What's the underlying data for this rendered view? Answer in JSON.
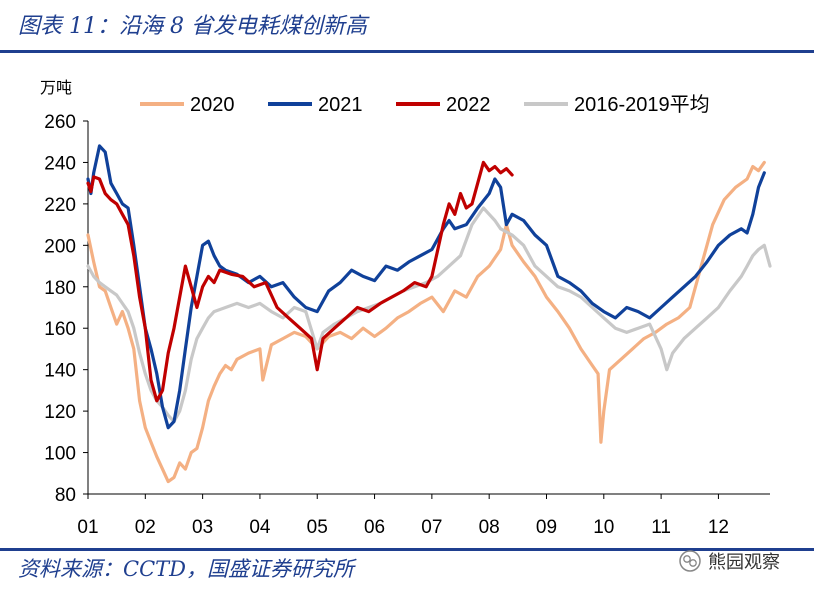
{
  "figure": {
    "title": "图表 11：沿海 8 省发电耗煤创新高",
    "source": "资料来源：CCTD，国盛证券研究所",
    "watermark": "熊园观察"
  },
  "colors": {
    "rule": "#1f3f8f"
  },
  "chart_data": {
    "type": "line",
    "title": "",
    "ylabel": "万吨",
    "xlabel": "",
    "ylim": [
      80,
      260
    ],
    "xlim": [
      1,
      12.9
    ],
    "yticks": [
      80,
      100,
      120,
      140,
      160,
      180,
      200,
      220,
      240,
      260
    ],
    "xticks": [
      "01",
      "02",
      "03",
      "04",
      "05",
      "06",
      "07",
      "08",
      "09",
      "10",
      "11",
      "12"
    ],
    "legend_position": "top",
    "series": [
      {
        "name": "2020",
        "color": "#f4b083",
        "points": [
          [
            1.0,
            205
          ],
          [
            1.1,
            192
          ],
          [
            1.2,
            180
          ],
          [
            1.3,
            178
          ],
          [
            1.4,
            170
          ],
          [
            1.5,
            162
          ],
          [
            1.6,
            168
          ],
          [
            1.7,
            160
          ],
          [
            1.8,
            150
          ],
          [
            1.9,
            125
          ],
          [
            2.0,
            112
          ],
          [
            2.1,
            105
          ],
          [
            2.2,
            98
          ],
          [
            2.3,
            92
          ],
          [
            2.4,
            86
          ],
          [
            2.5,
            88
          ],
          [
            2.6,
            95
          ],
          [
            2.7,
            92
          ],
          [
            2.8,
            100
          ],
          [
            2.9,
            102
          ],
          [
            3.0,
            112
          ],
          [
            3.1,
            125
          ],
          [
            3.2,
            132
          ],
          [
            3.3,
            138
          ],
          [
            3.4,
            142
          ],
          [
            3.5,
            140
          ],
          [
            3.6,
            145
          ],
          [
            3.8,
            148
          ],
          [
            4.0,
            150
          ],
          [
            4.05,
            135
          ],
          [
            4.2,
            152
          ],
          [
            4.4,
            155
          ],
          [
            4.6,
            158
          ],
          [
            4.8,
            156
          ],
          [
            5.0,
            150
          ],
          [
            5.2,
            156
          ],
          [
            5.4,
            158
          ],
          [
            5.6,
            155
          ],
          [
            5.8,
            160
          ],
          [
            6.0,
            156
          ],
          [
            6.2,
            160
          ],
          [
            6.4,
            165
          ],
          [
            6.6,
            168
          ],
          [
            6.8,
            172
          ],
          [
            7.0,
            175
          ],
          [
            7.2,
            168
          ],
          [
            7.4,
            178
          ],
          [
            7.6,
            175
          ],
          [
            7.8,
            185
          ],
          [
            8.0,
            190
          ],
          [
            8.2,
            198
          ],
          [
            8.3,
            210
          ],
          [
            8.4,
            200
          ],
          [
            8.6,
            192
          ],
          [
            8.8,
            185
          ],
          [
            9.0,
            175
          ],
          [
            9.2,
            168
          ],
          [
            9.4,
            160
          ],
          [
            9.6,
            150
          ],
          [
            9.8,
            142
          ],
          [
            9.9,
            138
          ],
          [
            9.95,
            105
          ],
          [
            10.0,
            120
          ],
          [
            10.1,
            140
          ],
          [
            10.3,
            145
          ],
          [
            10.5,
            150
          ],
          [
            10.7,
            155
          ],
          [
            10.9,
            158
          ],
          [
            11.1,
            162
          ],
          [
            11.3,
            165
          ],
          [
            11.5,
            170
          ],
          [
            11.7,
            190
          ],
          [
            11.9,
            210
          ],
          [
            12.1,
            222
          ],
          [
            12.3,
            228
          ],
          [
            12.5,
            232
          ],
          [
            12.6,
            238
          ],
          [
            12.7,
            236
          ],
          [
            12.8,
            240
          ]
        ]
      },
      {
        "name": "2021",
        "color": "#10419a",
        "points": [
          [
            1.0,
            232
          ],
          [
            1.05,
            225
          ],
          [
            1.1,
            235
          ],
          [
            1.2,
            248
          ],
          [
            1.3,
            245
          ],
          [
            1.4,
            230
          ],
          [
            1.5,
            225
          ],
          [
            1.6,
            220
          ],
          [
            1.7,
            218
          ],
          [
            1.8,
            200
          ],
          [
            1.9,
            180
          ],
          [
            2.0,
            160
          ],
          [
            2.1,
            150
          ],
          [
            2.2,
            138
          ],
          [
            2.3,
            122
          ],
          [
            2.4,
            112
          ],
          [
            2.5,
            115
          ],
          [
            2.6,
            130
          ],
          [
            2.7,
            150
          ],
          [
            2.8,
            170
          ],
          [
            2.9,
            185
          ],
          [
            3.0,
            200
          ],
          [
            3.1,
            202
          ],
          [
            3.2,
            195
          ],
          [
            3.3,
            190
          ],
          [
            3.4,
            188
          ],
          [
            3.6,
            186
          ],
          [
            3.8,
            182
          ],
          [
            4.0,
            185
          ],
          [
            4.2,
            180
          ],
          [
            4.4,
            182
          ],
          [
            4.6,
            175
          ],
          [
            4.8,
            170
          ],
          [
            5.0,
            168
          ],
          [
            5.2,
            178
          ],
          [
            5.4,
            182
          ],
          [
            5.6,
            188
          ],
          [
            5.8,
            185
          ],
          [
            6.0,
            183
          ],
          [
            6.2,
            190
          ],
          [
            6.4,
            188
          ],
          [
            6.6,
            192
          ],
          [
            6.8,
            195
          ],
          [
            7.0,
            198
          ],
          [
            7.2,
            208
          ],
          [
            7.3,
            212
          ],
          [
            7.4,
            208
          ],
          [
            7.6,
            210
          ],
          [
            7.8,
            218
          ],
          [
            8.0,
            225
          ],
          [
            8.1,
            232
          ],
          [
            8.2,
            228
          ],
          [
            8.3,
            210
          ],
          [
            8.4,
            215
          ],
          [
            8.6,
            212
          ],
          [
            8.8,
            205
          ],
          [
            9.0,
            200
          ],
          [
            9.2,
            185
          ],
          [
            9.4,
            182
          ],
          [
            9.6,
            178
          ],
          [
            9.8,
            172
          ],
          [
            10.0,
            168
          ],
          [
            10.2,
            165
          ],
          [
            10.4,
            170
          ],
          [
            10.6,
            168
          ],
          [
            10.8,
            165
          ],
          [
            11.0,
            170
          ],
          [
            11.2,
            175
          ],
          [
            11.4,
            180
          ],
          [
            11.6,
            185
          ],
          [
            11.8,
            192
          ],
          [
            12.0,
            200
          ],
          [
            12.2,
            205
          ],
          [
            12.4,
            208
          ],
          [
            12.5,
            206
          ],
          [
            12.6,
            215
          ],
          [
            12.7,
            228
          ],
          [
            12.8,
            235
          ]
        ]
      },
      {
        "name": "2022",
        "color": "#c00000",
        "points": [
          [
            1.0,
            230
          ],
          [
            1.05,
            226
          ],
          [
            1.1,
            233
          ],
          [
            1.2,
            232
          ],
          [
            1.3,
            225
          ],
          [
            1.4,
            222
          ],
          [
            1.5,
            220
          ],
          [
            1.6,
            215
          ],
          [
            1.7,
            210
          ],
          [
            1.8,
            195
          ],
          [
            1.9,
            175
          ],
          [
            2.0,
            160
          ],
          [
            2.1,
            135
          ],
          [
            2.2,
            125
          ],
          [
            2.3,
            130
          ],
          [
            2.4,
            148
          ],
          [
            2.5,
            160
          ],
          [
            2.6,
            175
          ],
          [
            2.7,
            190
          ],
          [
            2.8,
            180
          ],
          [
            2.9,
            170
          ],
          [
            3.0,
            180
          ],
          [
            3.1,
            185
          ],
          [
            3.2,
            182
          ],
          [
            3.3,
            188
          ],
          [
            3.5,
            186
          ],
          [
            3.7,
            185
          ],
          [
            3.9,
            180
          ],
          [
            4.1,
            182
          ],
          [
            4.3,
            170
          ],
          [
            4.5,
            165
          ],
          [
            4.7,
            160
          ],
          [
            4.9,
            155
          ],
          [
            5.0,
            140
          ],
          [
            5.1,
            155
          ],
          [
            5.3,
            160
          ],
          [
            5.5,
            165
          ],
          [
            5.7,
            170
          ],
          [
            5.9,
            168
          ],
          [
            6.1,
            172
          ],
          [
            6.3,
            175
          ],
          [
            6.5,
            178
          ],
          [
            6.7,
            182
          ],
          [
            6.9,
            180
          ],
          [
            7.0,
            185
          ],
          [
            7.2,
            210
          ],
          [
            7.3,
            220
          ],
          [
            7.4,
            215
          ],
          [
            7.5,
            225
          ],
          [
            7.6,
            218
          ],
          [
            7.7,
            220
          ],
          [
            7.8,
            230
          ],
          [
            7.9,
            240
          ],
          [
            8.0,
            236
          ],
          [
            8.1,
            238
          ],
          [
            8.2,
            235
          ],
          [
            8.3,
            237
          ],
          [
            8.4,
            234
          ]
        ]
      },
      {
        "name": "2016-2019平均",
        "color": "#c8c8c8",
        "points": [
          [
            1.0,
            190
          ],
          [
            1.1,
            185
          ],
          [
            1.2,
            182
          ],
          [
            1.3,
            180
          ],
          [
            1.4,
            178
          ],
          [
            1.5,
            176
          ],
          [
            1.6,
            172
          ],
          [
            1.7,
            168
          ],
          [
            1.8,
            160
          ],
          [
            1.9,
            148
          ],
          [
            2.0,
            138
          ],
          [
            2.1,
            130
          ],
          [
            2.2,
            125
          ],
          [
            2.3,
            122
          ],
          [
            2.4,
            118
          ],
          [
            2.5,
            115
          ],
          [
            2.6,
            120
          ],
          [
            2.7,
            130
          ],
          [
            2.8,
            145
          ],
          [
            2.9,
            155
          ],
          [
            3.0,
            160
          ],
          [
            3.1,
            165
          ],
          [
            3.2,
            168
          ],
          [
            3.4,
            170
          ],
          [
            3.6,
            172
          ],
          [
            3.8,
            170
          ],
          [
            4.0,
            172
          ],
          [
            4.2,
            168
          ],
          [
            4.4,
            165
          ],
          [
            4.6,
            170
          ],
          [
            4.8,
            168
          ],
          [
            5.0,
            150
          ],
          [
            5.1,
            158
          ],
          [
            5.3,
            162
          ],
          [
            5.5,
            165
          ],
          [
            5.7,
            168
          ],
          [
            5.9,
            170
          ],
          [
            6.1,
            172
          ],
          [
            6.3,
            175
          ],
          [
            6.5,
            178
          ],
          [
            6.7,
            180
          ],
          [
            6.9,
            182
          ],
          [
            7.1,
            185
          ],
          [
            7.3,
            190
          ],
          [
            7.5,
            195
          ],
          [
            7.7,
            210
          ],
          [
            7.9,
            218
          ],
          [
            8.0,
            215
          ],
          [
            8.1,
            212
          ],
          [
            8.2,
            208
          ],
          [
            8.4,
            205
          ],
          [
            8.6,
            200
          ],
          [
            8.8,
            190
          ],
          [
            9.0,
            185
          ],
          [
            9.2,
            180
          ],
          [
            9.4,
            178
          ],
          [
            9.6,
            175
          ],
          [
            9.8,
            170
          ],
          [
            10.0,
            165
          ],
          [
            10.2,
            160
          ],
          [
            10.4,
            158
          ],
          [
            10.6,
            160
          ],
          [
            10.8,
            162
          ],
          [
            11.0,
            150
          ],
          [
            11.1,
            140
          ],
          [
            11.2,
            148
          ],
          [
            11.4,
            155
          ],
          [
            11.6,
            160
          ],
          [
            11.8,
            165
          ],
          [
            12.0,
            170
          ],
          [
            12.2,
            178
          ],
          [
            12.4,
            185
          ],
          [
            12.5,
            190
          ],
          [
            12.6,
            195
          ],
          [
            12.7,
            198
          ],
          [
            12.8,
            200
          ],
          [
            12.9,
            190
          ]
        ]
      }
    ]
  }
}
